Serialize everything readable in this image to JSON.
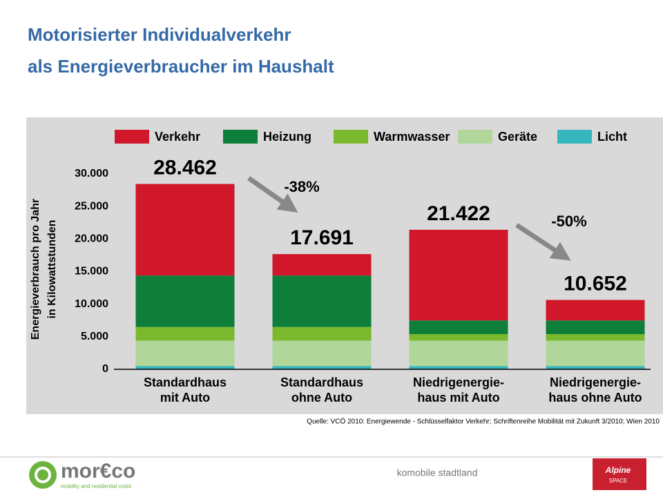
{
  "slide": {
    "title_lines": [
      "Motorisierter Individualverkehr",
      "als Energieverbraucher im Haushalt"
    ],
    "source": "Quelle:  VCÖ 2010: Energiewende - Schlüsselfaktor Verkehr; Schriftenreihe Mobilität mit Zukunft 3/2010; Wien 2010",
    "footer": "komobile stadtland",
    "logo": {
      "name": "mor€co",
      "tagline": "mobility and residential costs"
    },
    "partner_logo": {
      "line1": "Alpine",
      "line2": "SPACE"
    }
  },
  "chart_data": {
    "type": "stacked-bar",
    "y_label_lines": [
      "Energieverbrauch pro Jahr",
      "in Kilowattstunden"
    ],
    "categories": [
      [
        "Standardhaus",
        "mit Auto"
      ],
      [
        "Standardhaus",
        "ohne Auto"
      ],
      [
        "Niedrigenergie-",
        "haus mit Auto"
      ],
      [
        "Niedrigenergie-",
        "haus ohne Auto"
      ]
    ],
    "series": [
      {
        "name": "Licht",
        "color": "#35b7bd",
        "values": [
          500,
          500,
          500,
          500
        ]
      },
      {
        "name": "Geräte",
        "color": "#b0d69a",
        "values": [
          3900,
          3900,
          3900,
          3900
        ]
      },
      {
        "name": "Warmwasser",
        "color": "#7ab92d",
        "values": [
          2100,
          2100,
          1000,
          1000
        ]
      },
      {
        "name": "Heizung",
        "color": "#0e7e3a",
        "values": [
          7900,
          7900,
          2100,
          2100
        ]
      },
      {
        "name": "Verkehr",
        "color": "#d0182a",
        "values": [
          14062,
          3291,
          13922,
          3152
        ]
      }
    ],
    "legend_order": [
      4,
      3,
      2,
      1,
      0
    ],
    "totals": {
      "values": [
        28462,
        17691,
        21422,
        10652
      ],
      "value_labels": [
        "28.462",
        "17.691",
        "21.422",
        "10.652"
      ]
    },
    "annotations": [
      "-38%",
      "-50%"
    ],
    "ylim": [
      0,
      30000
    ],
    "yticks": [
      0,
      {
        "value": 5000,
        "label": "5.000"
      },
      {
        "value": 10000,
        "label": "10.000"
      },
      {
        "value": 15000,
        "label": "15.000"
      },
      {
        "value": 20000,
        "label": "20.000"
      },
      {
        "value": 25000,
        "label": "25.000"
      },
      {
        "value": 30000,
        "label": "30.000"
      }
    ]
  }
}
